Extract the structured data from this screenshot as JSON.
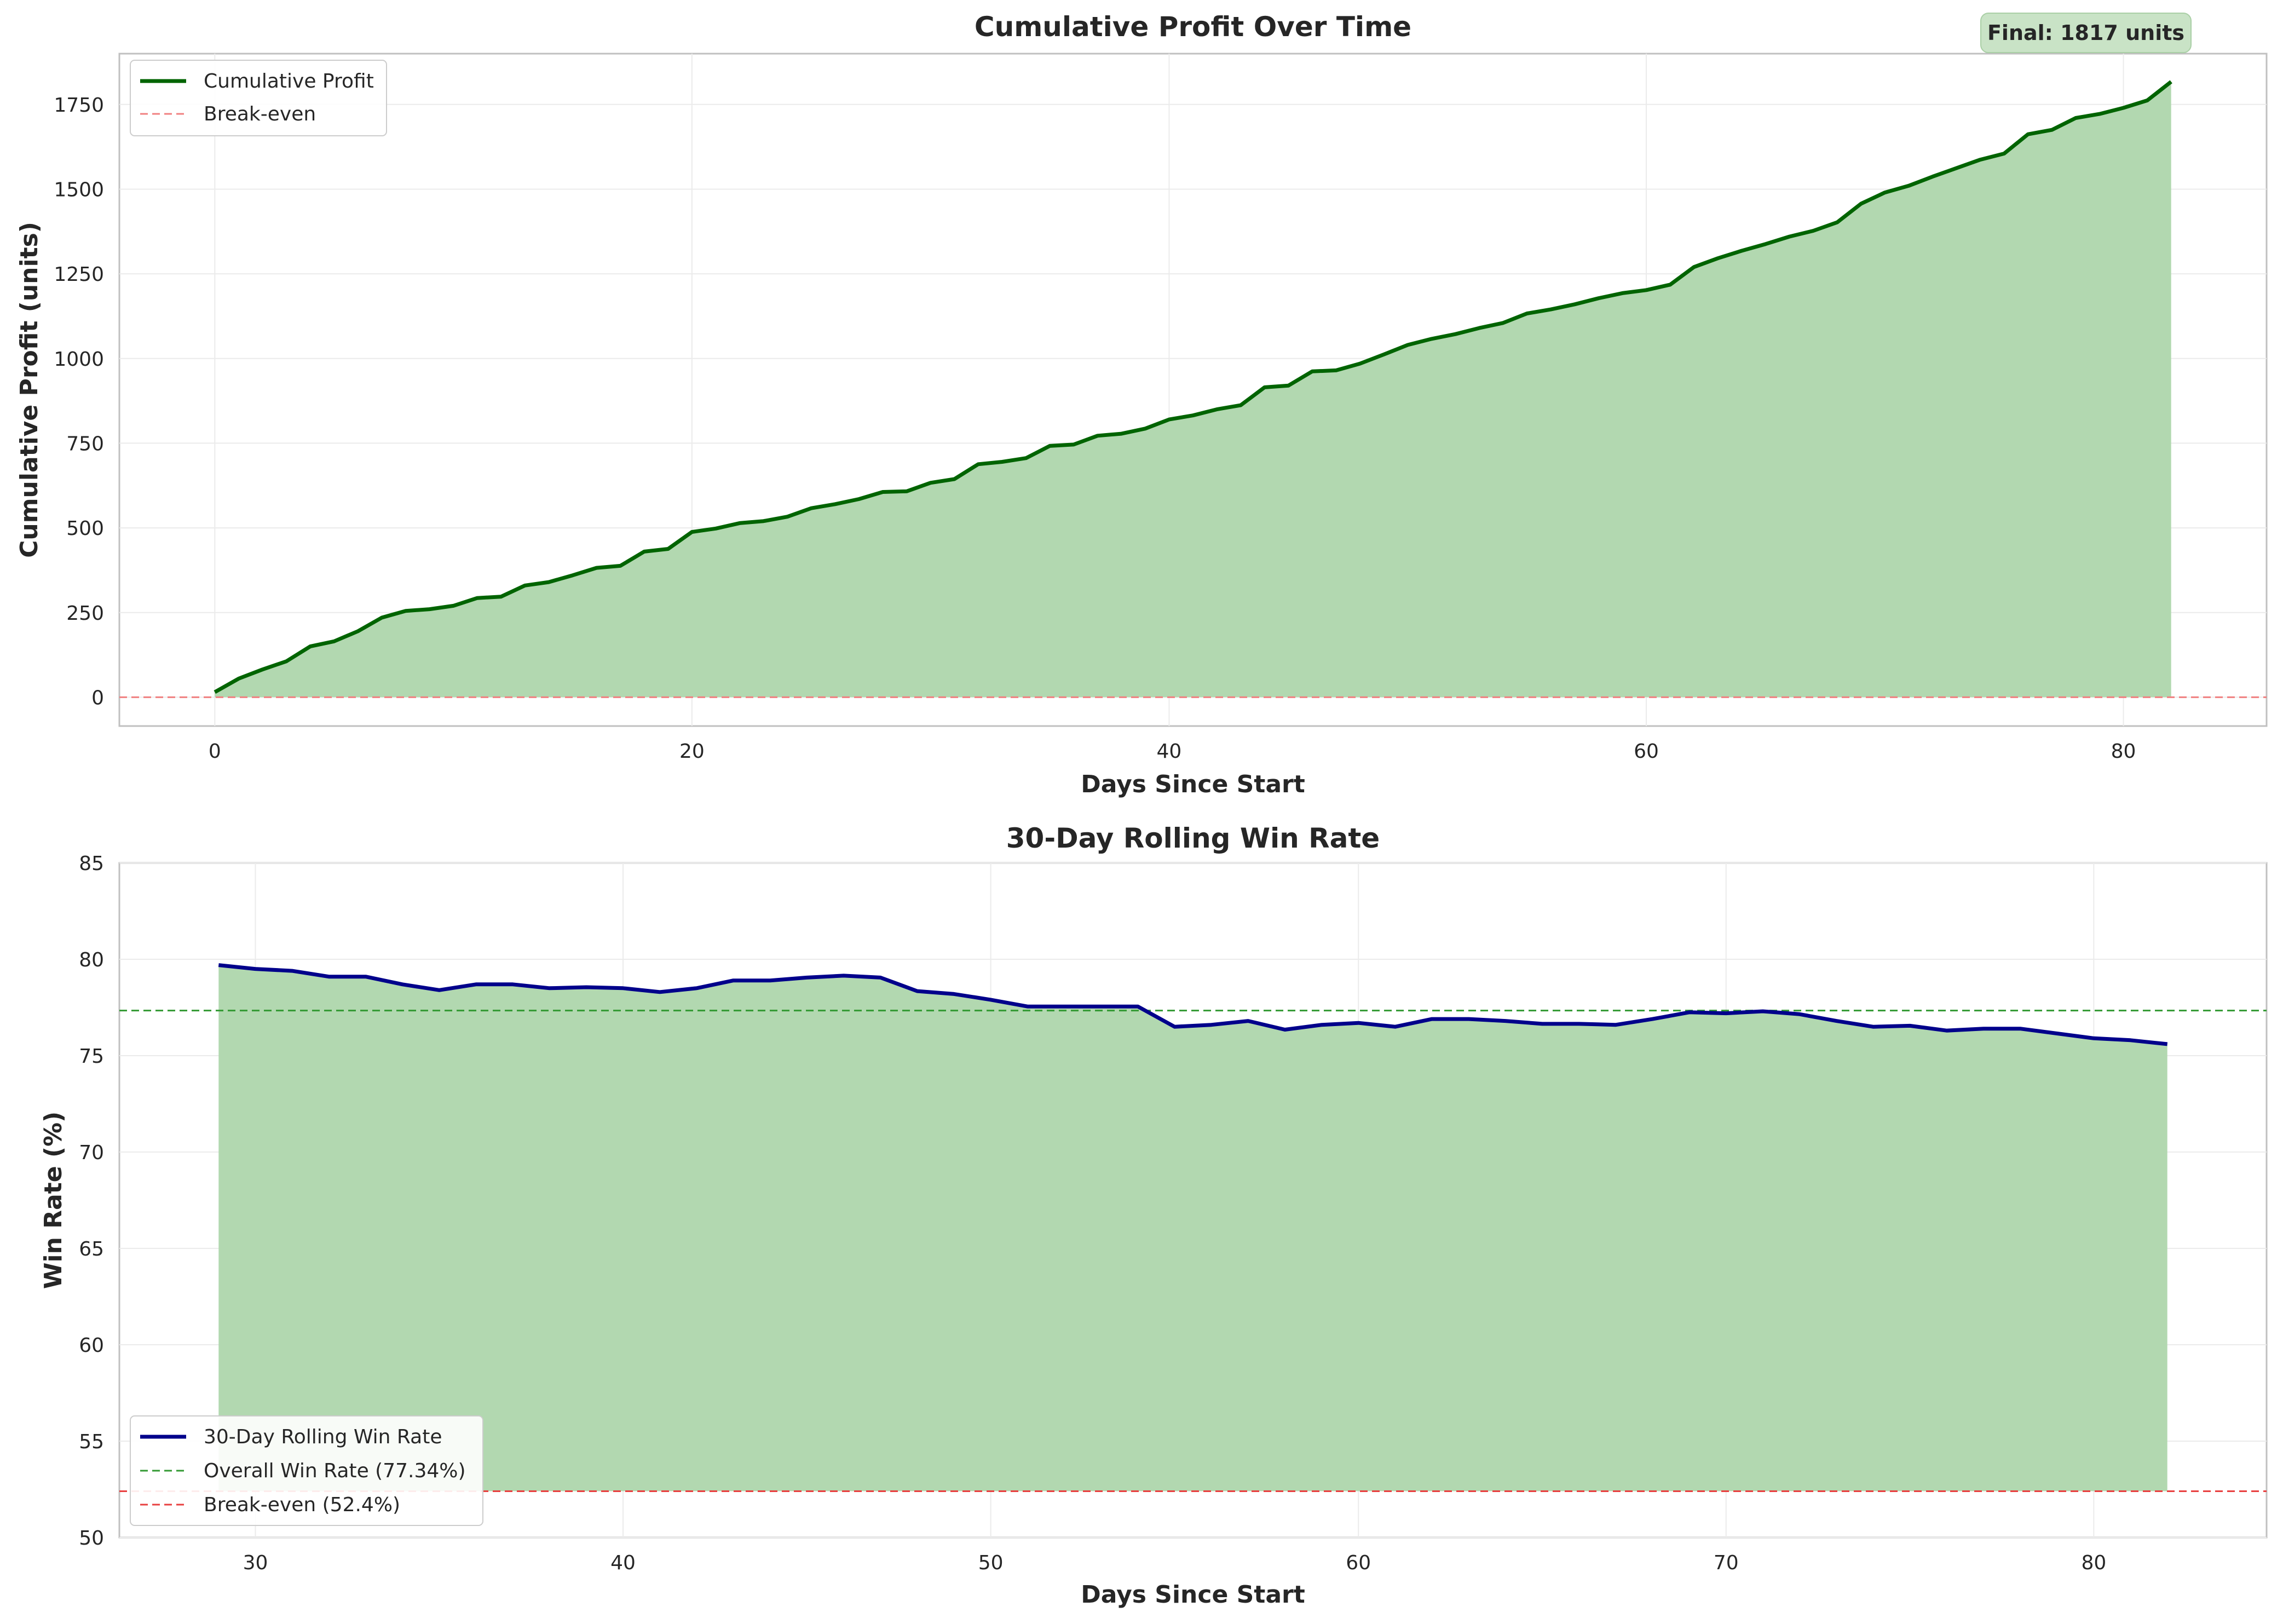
{
  "chart_data": [
    {
      "type": "area",
      "title": "Cumulative Profit Over Time",
      "xlabel": "Days Since Start",
      "ylabel": "Cumulative Profit (units)",
      "xlim": [
        -4,
        86
      ],
      "ylim": [
        -85,
        1900
      ],
      "xticks": [
        0,
        20,
        40,
        60,
        80
      ],
      "yticks": [
        0,
        250,
        500,
        750,
        1000,
        1250,
        1500,
        1750
      ],
      "grid": true,
      "legend_position": "upper left",
      "annotation": "Final: 1817 units",
      "series": [
        {
          "name": "Cumulative Profit",
          "color": "#006400",
          "fill": "#b2d8b0",
          "x": [
            0,
            1,
            2,
            3,
            4,
            5,
            6,
            7,
            8,
            9,
            10,
            11,
            12,
            13,
            14,
            15,
            16,
            17,
            18,
            19,
            20,
            21,
            22,
            23,
            24,
            25,
            26,
            27,
            28,
            29,
            30,
            31,
            32,
            33,
            34,
            35,
            36,
            37,
            38,
            39,
            40,
            41,
            42,
            43,
            44,
            45,
            46,
            47,
            48,
            49,
            50,
            51,
            52,
            53,
            54,
            55,
            56,
            57,
            58,
            59,
            60,
            61,
            62,
            63,
            64,
            65,
            66,
            67,
            68,
            69,
            70,
            71,
            72,
            73,
            74,
            75,
            76,
            77,
            78,
            79,
            80,
            81,
            82
          ],
          "y": [
            15,
            55,
            82,
            106,
            150,
            165,
            195,
            235,
            255,
            260,
            270,
            293,
            297,
            330,
            340,
            360,
            382,
            388,
            430,
            438,
            488,
            498,
            514,
            520,
            533,
            558,
            570,
            585,
            606,
            608,
            633,
            644,
            688,
            695,
            706,
            742,
            746,
            772,
            778,
            793,
            820,
            832,
            850,
            862,
            915,
            920,
            962,
            965,
            985,
            1012,
            1040,
            1058,
            1072,
            1090,
            1105,
            1133,
            1145,
            1160,
            1178,
            1193,
            1202,
            1218,
            1270,
            1296,
            1318,
            1338,
            1360,
            1377,
            1402,
            1457,
            1490,
            1510,
            1537,
            1562,
            1587,
            1605,
            1662,
            1675,
            1710,
            1722,
            1740,
            1762,
            1817
          ]
        },
        {
          "name": "Break-even",
          "color": "#f08080",
          "style": "dashed",
          "y_const": 0
        }
      ]
    },
    {
      "type": "area",
      "title": "30-Day Rolling Win Rate",
      "xlabel": "Days Since Start",
      "ylabel": "Win Rate (%)",
      "xlim": [
        26.3,
        84.7
      ],
      "ylim": [
        50,
        85
      ],
      "xticks": [
        30,
        40,
        50,
        60,
        70,
        80
      ],
      "yticks": [
        50,
        55,
        60,
        65,
        70,
        75,
        80,
        85
      ],
      "grid": true,
      "legend_position": "lower left",
      "series": [
        {
          "name": "30-Day Rolling Win Rate",
          "color": "#00008b",
          "fill": "#b2d8b0",
          "fill_base": 52.4,
          "x": [
            29,
            30,
            31,
            32,
            33,
            34,
            35,
            36,
            37,
            38,
            39,
            40,
            41,
            42,
            43,
            44,
            45,
            46,
            47,
            48,
            49,
            50,
            51,
            52,
            53,
            54,
            55,
            56,
            57,
            58,
            59,
            60,
            61,
            62,
            63,
            64,
            65,
            66,
            67,
            68,
            69,
            70,
            71,
            72,
            73,
            74,
            75,
            76,
            77,
            78,
            79,
            80,
            81,
            82
          ],
          "y": [
            79.7,
            79.5,
            79.4,
            79.1,
            79.1,
            78.7,
            78.4,
            78.7,
            78.7,
            78.5,
            78.55,
            78.5,
            78.3,
            78.5,
            78.9,
            78.9,
            79.05,
            79.15,
            79.05,
            78.35,
            78.2,
            77.9,
            77.55,
            77.55,
            77.55,
            77.55,
            76.5,
            76.6,
            76.8,
            76.35,
            76.6,
            76.7,
            76.5,
            76.9,
            76.9,
            76.8,
            76.65,
            76.65,
            76.6,
            76.9,
            77.25,
            77.2,
            77.3,
            77.15,
            76.8,
            76.5,
            76.55,
            76.3,
            76.4,
            76.4,
            76.15,
            75.9,
            75.8,
            75.6
          ]
        },
        {
          "name": "Overall Win Rate (77.34%)",
          "color": "#339933",
          "style": "dashed",
          "y_const": 77.34
        },
        {
          "name": "Break-even (52.4%)",
          "color": "#e84040",
          "style": "dashed",
          "y_const": 52.4
        }
      ]
    }
  ]
}
